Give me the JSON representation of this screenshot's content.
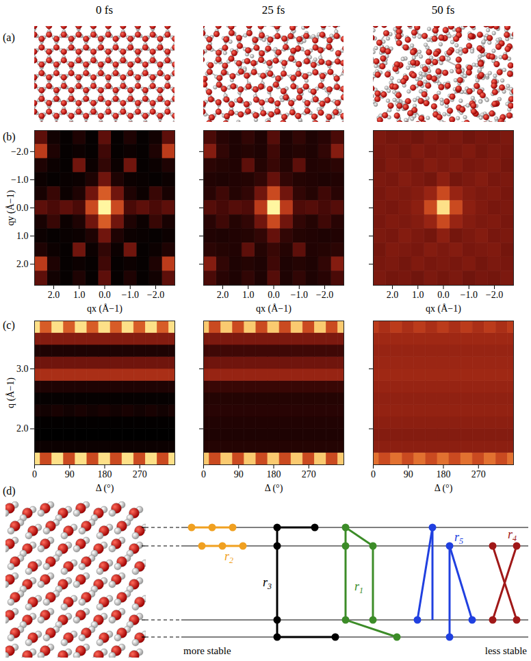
{
  "columns": [
    "0 fs",
    "25 fs",
    "50 fs"
  ],
  "panel_labels": [
    "(a)",
    "(b)",
    "(c)",
    "(d)"
  ],
  "chart_data": [
    {
      "type": "heatmap",
      "x": [
        -2.5,
        -2,
        -1.5,
        -1,
        -0.5,
        0,
        0.5,
        1,
        1.5,
        2,
        2.5
      ],
      "y": [
        -2.5,
        -2,
        -1.5,
        -1,
        -0.5,
        0,
        0.5,
        1,
        1.5,
        2,
        2.5
      ],
      "cells": [
        [
          0.3,
          0.08,
          0.04,
          0.12,
          0.04,
          0.3,
          0.04,
          0.12,
          0.04,
          0.08,
          0.3
        ],
        [
          0.55,
          0.12,
          0.04,
          0.06,
          0.04,
          0.22,
          0.04,
          0.06,
          0.04,
          0.12,
          0.55
        ],
        [
          0.12,
          0.06,
          0.04,
          0.35,
          0.06,
          0.18,
          0.06,
          0.35,
          0.04,
          0.06,
          0.12
        ],
        [
          0.06,
          0.04,
          0.05,
          0.06,
          0.12,
          0.35,
          0.12,
          0.06,
          0.05,
          0.04,
          0.06
        ],
        [
          0.1,
          0.2,
          0.06,
          0.12,
          0.35,
          0.65,
          0.35,
          0.12,
          0.06,
          0.2,
          0.1
        ],
        [
          0.3,
          0.25,
          0.3,
          0.25,
          0.6,
          1,
          0.6,
          0.25,
          0.3,
          0.25,
          0.3
        ],
        [
          0.1,
          0.2,
          0.06,
          0.12,
          0.35,
          0.65,
          0.35,
          0.12,
          0.06,
          0.2,
          0.1
        ],
        [
          0.06,
          0.04,
          0.05,
          0.06,
          0.12,
          0.35,
          0.12,
          0.06,
          0.05,
          0.04,
          0.06
        ],
        [
          0.12,
          0.06,
          0.04,
          0.35,
          0.06,
          0.18,
          0.06,
          0.35,
          0.04,
          0.06,
          0.12
        ],
        [
          0.55,
          0.12,
          0.04,
          0.06,
          0.04,
          0.22,
          0.04,
          0.06,
          0.04,
          0.12,
          0.55
        ],
        [
          0.3,
          0.08,
          0.04,
          0.12,
          0.04,
          0.3,
          0.04,
          0.12,
          0.04,
          0.08,
          0.3
        ]
      ],
      "xlim": [
        2.75,
        -2.75
      ],
      "ylim": [
        2.75,
        -2.75
      ],
      "xticks": [
        2,
        1,
        0,
        -1,
        -2
      ],
      "yticks": [
        -2,
        -1,
        0,
        1,
        2
      ],
      "xlabel": "qx (Å−1)",
      "ylabel": "qy (Å−1)"
    },
    {
      "type": "heatmap",
      "x": [
        -2.5,
        -2,
        -1.5,
        -1,
        -0.5,
        0,
        0.5,
        1,
        1.5,
        2,
        2.5
      ],
      "y": [
        -2.5,
        -2,
        -1.5,
        -1,
        -0.5,
        0,
        0.5,
        1,
        1.5,
        2,
        2.5
      ],
      "cells": [
        [
          0.25,
          0.15,
          0.12,
          0.18,
          0.12,
          0.28,
          0.12,
          0.18,
          0.12,
          0.15,
          0.25
        ],
        [
          0.4,
          0.18,
          0.12,
          0.14,
          0.12,
          0.22,
          0.12,
          0.14,
          0.12,
          0.18,
          0.4
        ],
        [
          0.16,
          0.14,
          0.13,
          0.3,
          0.14,
          0.2,
          0.14,
          0.3,
          0.13,
          0.14,
          0.16
        ],
        [
          0.13,
          0.12,
          0.13,
          0.14,
          0.18,
          0.32,
          0.18,
          0.14,
          0.13,
          0.12,
          0.13
        ],
        [
          0.15,
          0.22,
          0.14,
          0.18,
          0.35,
          0.6,
          0.35,
          0.18,
          0.14,
          0.22,
          0.15
        ],
        [
          0.28,
          0.24,
          0.28,
          0.26,
          0.55,
          1,
          0.55,
          0.26,
          0.28,
          0.24,
          0.28
        ],
        [
          0.15,
          0.22,
          0.14,
          0.18,
          0.35,
          0.6,
          0.35,
          0.18,
          0.14,
          0.22,
          0.15
        ],
        [
          0.13,
          0.12,
          0.13,
          0.14,
          0.18,
          0.32,
          0.18,
          0.14,
          0.13,
          0.12,
          0.13
        ],
        [
          0.16,
          0.14,
          0.13,
          0.3,
          0.14,
          0.2,
          0.14,
          0.3,
          0.13,
          0.14,
          0.16
        ],
        [
          0.4,
          0.18,
          0.12,
          0.14,
          0.12,
          0.22,
          0.12,
          0.14,
          0.12,
          0.18,
          0.4
        ],
        [
          0.25,
          0.15,
          0.12,
          0.18,
          0.12,
          0.28,
          0.12,
          0.18,
          0.12,
          0.15,
          0.25
        ]
      ],
      "xlim": [
        2.75,
        -2.75
      ],
      "ylim": [
        2.75,
        -2.75
      ],
      "xticks": [
        2,
        1,
        0,
        -1,
        -2
      ],
      "yticks": [
        -2,
        -1,
        0,
        1,
        2
      ],
      "xlabel": "qx (Å−1)",
      "tick_labels": "x"
    },
    {
      "type": "heatmap",
      "x": [
        -2.5,
        -2,
        -1.5,
        -1,
        -0.5,
        0,
        0.5,
        1,
        1.5,
        2,
        2.5
      ],
      "y": [
        -2.5,
        -2,
        -1.5,
        -1,
        -0.5,
        0,
        0.5,
        1,
        1.5,
        2,
        2.5
      ],
      "cells": [
        [
          0.38,
          0.36,
          0.37,
          0.35,
          0.38,
          0.36,
          0.38,
          0.35,
          0.37,
          0.36,
          0.38
        ],
        [
          0.37,
          0.38,
          0.36,
          0.39,
          0.37,
          0.38,
          0.37,
          0.39,
          0.36,
          0.38,
          0.37
        ],
        [
          0.36,
          0.39,
          0.38,
          0.37,
          0.4,
          0.38,
          0.4,
          0.37,
          0.38,
          0.39,
          0.36
        ],
        [
          0.38,
          0.37,
          0.4,
          0.38,
          0.36,
          0.42,
          0.36,
          0.38,
          0.4,
          0.37,
          0.38
        ],
        [
          0.37,
          0.39,
          0.38,
          0.4,
          0.45,
          0.6,
          0.45,
          0.4,
          0.38,
          0.39,
          0.37
        ],
        [
          0.38,
          0.37,
          0.39,
          0.42,
          0.6,
          0.95,
          0.6,
          0.42,
          0.39,
          0.37,
          0.38
        ],
        [
          0.37,
          0.39,
          0.38,
          0.4,
          0.45,
          0.6,
          0.45,
          0.4,
          0.38,
          0.39,
          0.37
        ],
        [
          0.38,
          0.37,
          0.4,
          0.38,
          0.36,
          0.42,
          0.36,
          0.38,
          0.4,
          0.37,
          0.38
        ],
        [
          0.36,
          0.39,
          0.38,
          0.37,
          0.4,
          0.38,
          0.4,
          0.37,
          0.38,
          0.39,
          0.36
        ],
        [
          0.37,
          0.38,
          0.36,
          0.39,
          0.37,
          0.38,
          0.37,
          0.39,
          0.36,
          0.38,
          0.37
        ],
        [
          0.38,
          0.36,
          0.37,
          0.35,
          0.38,
          0.36,
          0.38,
          0.35,
          0.37,
          0.36,
          0.38
        ]
      ],
      "xlim": [
        2.75,
        -2.75
      ],
      "ylim": [
        2.75,
        -2.75
      ],
      "xticks": [
        2,
        1,
        0,
        -1,
        -2
      ],
      "yticks": [
        -2,
        -1,
        0,
        1,
        2
      ],
      "xlabel": "qx (Å−1)",
      "tick_labels": "x"
    },
    {
      "type": "heatmap",
      "x": [
        0,
        30,
        60,
        90,
        120,
        150,
        180,
        210,
        240,
        270,
        300,
        330,
        360
      ],
      "y": [
        1.5,
        1.7,
        1.9,
        2.1,
        2.3,
        2.5,
        2.7,
        2.9,
        3.1,
        3.3,
        3.5,
        3.7
      ],
      "cells": [
        [
          0.95,
          0.6,
          0.95,
          0.6,
          0.95,
          0.6,
          0.95,
          0.6,
          0.95,
          0.6,
          0.95,
          0.6,
          0.95
        ],
        [
          0.06,
          0.06,
          0.06,
          0.06,
          0.06,
          0.06,
          0.06,
          0.06,
          0.06,
          0.06,
          0.06,
          0.06,
          0.06
        ],
        [
          0.02,
          0.02,
          0.02,
          0.02,
          0.02,
          0.02,
          0.02,
          0.02,
          0.02,
          0.02,
          0.02,
          0.02,
          0.02
        ],
        [
          0.03,
          0.03,
          0.03,
          0.03,
          0.03,
          0.03,
          0.03,
          0.03,
          0.03,
          0.03,
          0.03,
          0.03,
          0.03
        ],
        [
          0.1,
          0.08,
          0.1,
          0.08,
          0.1,
          0.08,
          0.1,
          0.08,
          0.1,
          0.08,
          0.1,
          0.08,
          0.1
        ],
        [
          0.04,
          0.04,
          0.04,
          0.04,
          0.04,
          0.04,
          0.04,
          0.04,
          0.04,
          0.04,
          0.04,
          0.04,
          0.04
        ],
        [
          0.12,
          0.12,
          0.12,
          0.12,
          0.12,
          0.12,
          0.12,
          0.12,
          0.12,
          0.12,
          0.12,
          0.12,
          0.12
        ],
        [
          0.5,
          0.5,
          0.5,
          0.5,
          0.5,
          0.5,
          0.5,
          0.5,
          0.5,
          0.5,
          0.5,
          0.5,
          0.5
        ],
        [
          0.35,
          0.35,
          0.35,
          0.35,
          0.35,
          0.35,
          0.35,
          0.35,
          0.35,
          0.35,
          0.35,
          0.35,
          0.35
        ],
        [
          0.12,
          0.12,
          0.12,
          0.12,
          0.12,
          0.12,
          0.12,
          0.12,
          0.12,
          0.12,
          0.12,
          0.12,
          0.12
        ],
        [
          0.4,
          0.4,
          0.4,
          0.4,
          0.4,
          0.4,
          0.4,
          0.4,
          0.4,
          0.4,
          0.4,
          0.4,
          0.4
        ],
        [
          0.95,
          0.65,
          0.95,
          0.65,
          0.95,
          0.65,
          0.95,
          0.65,
          0.95,
          0.65,
          0.95,
          0.65,
          0.95
        ]
      ],
      "xlim": [
        0,
        360
      ],
      "ylim": [
        1.4,
        3.8
      ],
      "xticks": [
        0,
        90,
        180,
        270
      ],
      "yticks": [
        2,
        3
      ],
      "xlabel": "Δ (°)",
      "ylabel": "q (Å−1)"
    },
    {
      "type": "heatmap",
      "x": [
        0,
        30,
        60,
        90,
        120,
        150,
        180,
        210,
        240,
        270,
        300,
        330,
        360
      ],
      "y": [
        1.5,
        1.7,
        1.9,
        2.1,
        2.3,
        2.5,
        2.7,
        2.9,
        3.1,
        3.3,
        3.5,
        3.7
      ],
      "cells": [
        [
          0.9,
          0.6,
          0.9,
          0.6,
          0.9,
          0.6,
          0.9,
          0.6,
          0.9,
          0.6,
          0.9,
          0.6,
          0.9
        ],
        [
          0.14,
          0.14,
          0.14,
          0.14,
          0.14,
          0.14,
          0.14,
          0.14,
          0.14,
          0.14,
          0.14,
          0.14,
          0.14
        ],
        [
          0.12,
          0.12,
          0.12,
          0.12,
          0.12,
          0.12,
          0.12,
          0.12,
          0.12,
          0.12,
          0.12,
          0.12,
          0.12
        ],
        [
          0.13,
          0.13,
          0.13,
          0.13,
          0.13,
          0.13,
          0.13,
          0.13,
          0.13,
          0.13,
          0.13,
          0.13,
          0.13
        ],
        [
          0.15,
          0.15,
          0.15,
          0.15,
          0.15,
          0.15,
          0.15,
          0.15,
          0.15,
          0.15,
          0.15,
          0.15,
          0.15
        ],
        [
          0.14,
          0.14,
          0.14,
          0.14,
          0.14,
          0.14,
          0.14,
          0.14,
          0.14,
          0.14,
          0.14,
          0.14,
          0.14
        ],
        [
          0.2,
          0.2,
          0.2,
          0.2,
          0.2,
          0.2,
          0.2,
          0.2,
          0.2,
          0.2,
          0.2,
          0.2,
          0.2
        ],
        [
          0.45,
          0.45,
          0.45,
          0.45,
          0.45,
          0.45,
          0.45,
          0.45,
          0.45,
          0.45,
          0.45,
          0.45,
          0.45
        ],
        [
          0.35,
          0.35,
          0.35,
          0.35,
          0.35,
          0.35,
          0.35,
          0.35,
          0.35,
          0.35,
          0.35,
          0.35,
          0.35
        ],
        [
          0.22,
          0.22,
          0.22,
          0.22,
          0.22,
          0.22,
          0.22,
          0.22,
          0.22,
          0.22,
          0.22,
          0.22,
          0.22
        ],
        [
          0.38,
          0.38,
          0.38,
          0.38,
          0.38,
          0.38,
          0.38,
          0.38,
          0.38,
          0.38,
          0.38,
          0.38,
          0.38
        ],
        [
          0.9,
          0.6,
          0.9,
          0.6,
          0.9,
          0.6,
          0.9,
          0.6,
          0.9,
          0.6,
          0.9,
          0.6,
          0.9
        ]
      ],
      "xlim": [
        0,
        360
      ],
      "ylim": [
        1.4,
        3.8
      ],
      "xticks": [
        0,
        90,
        180,
        270
      ],
      "yticks": [
        2,
        3
      ],
      "xlabel": "Δ (°)",
      "tick_labels": "x"
    },
    {
      "type": "heatmap",
      "x": [
        0,
        30,
        60,
        90,
        120,
        150,
        180,
        210,
        240,
        270,
        300,
        330,
        360
      ],
      "y": [
        1.5,
        1.7,
        1.9,
        2.1,
        2.3,
        2.5,
        2.7,
        2.9,
        3.1,
        3.3,
        3.5,
        3.7
      ],
      "cells": [
        [
          0.7,
          0.6,
          0.7,
          0.6,
          0.7,
          0.6,
          0.7,
          0.6,
          0.7,
          0.6,
          0.7,
          0.6,
          0.7
        ],
        [
          0.42,
          0.42,
          0.42,
          0.42,
          0.42,
          0.42,
          0.42,
          0.42,
          0.42,
          0.42,
          0.42,
          0.42,
          0.42
        ],
        [
          0.4,
          0.4,
          0.4,
          0.4,
          0.4,
          0.4,
          0.4,
          0.4,
          0.4,
          0.4,
          0.4,
          0.4,
          0.4
        ],
        [
          0.42,
          0.42,
          0.42,
          0.42,
          0.42,
          0.42,
          0.42,
          0.42,
          0.42,
          0.42,
          0.42,
          0.42,
          0.42
        ],
        [
          0.44,
          0.44,
          0.44,
          0.44,
          0.44,
          0.44,
          0.44,
          0.44,
          0.44,
          0.44,
          0.44,
          0.44,
          0.44
        ],
        [
          0.43,
          0.43,
          0.43,
          0.43,
          0.43,
          0.43,
          0.43,
          0.43,
          0.43,
          0.43,
          0.43,
          0.43,
          0.43
        ],
        [
          0.45,
          0.45,
          0.45,
          0.45,
          0.45,
          0.45,
          0.45,
          0.45,
          0.45,
          0.45,
          0.45,
          0.45,
          0.45
        ],
        [
          0.47,
          0.47,
          0.47,
          0.47,
          0.47,
          0.47,
          0.47,
          0.47,
          0.47,
          0.47,
          0.47,
          0.47,
          0.47
        ],
        [
          0.46,
          0.46,
          0.46,
          0.46,
          0.46,
          0.46,
          0.46,
          0.46,
          0.46,
          0.46,
          0.46,
          0.46,
          0.46
        ],
        [
          0.45,
          0.45,
          0.45,
          0.45,
          0.45,
          0.45,
          0.45,
          0.45,
          0.45,
          0.45,
          0.45,
          0.45,
          0.45
        ],
        [
          0.47,
          0.47,
          0.47,
          0.47,
          0.47,
          0.47,
          0.47,
          0.47,
          0.47,
          0.47,
          0.47,
          0.47,
          0.47
        ],
        [
          0.55,
          0.5,
          0.55,
          0.5,
          0.55,
          0.5,
          0.55,
          0.5,
          0.55,
          0.5,
          0.55,
          0.5,
          0.55
        ]
      ],
      "xlim": [
        0,
        360
      ],
      "ylim": [
        1.4,
        3.8
      ],
      "xticks": [
        0,
        90,
        180,
        270
      ],
      "yticks": [
        2,
        3
      ],
      "xlabel": "Δ (°)",
      "tick_labels": "x"
    }
  ],
  "diagram": {
    "bonds": [
      {
        "label": "r2",
        "color": "#f0a020"
      },
      {
        "label": "r3",
        "color": "#000000"
      },
      {
        "label": "r1",
        "color": "#3c8c28"
      },
      {
        "label": "r5",
        "color": "#2040e0"
      },
      {
        "label": "r4",
        "color": "#a01818"
      }
    ],
    "left_text": "more stable",
    "right_text": "less stable"
  }
}
